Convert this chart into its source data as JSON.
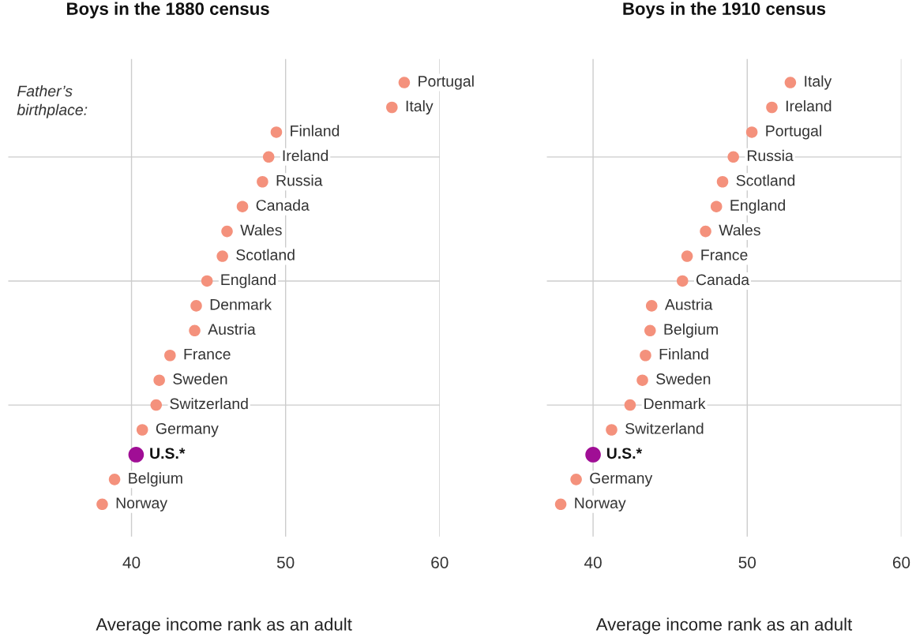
{
  "chart_data": [
    {
      "type": "scatter",
      "orientation": "horizontal",
      "title": "Boys in the 1880 census",
      "xlabel": "Average income rank as an adult",
      "annotations": [
        "Father’s\nbirthplace:"
      ],
      "categories": [
        "Portugal",
        "Italy",
        "Finland",
        "Ireland",
        "Russia",
        "Canada",
        "Wales",
        "Scotland",
        "England",
        "Denmark",
        "Austria",
        "France",
        "Sweden",
        "Switzerland",
        "Germany",
        "U.S.*",
        "Belgium",
        "Norway"
      ],
      "series": [
        {
          "color": "#f4917c",
          "values": [
            57.7,
            56.9,
            49.4,
            48.9,
            48.5,
            47.2,
            46.2,
            45.9,
            44.9,
            44.2,
            44.1,
            42.5,
            41.8,
            41.6,
            40.7,
            null,
            38.9,
            38.1
          ]
        },
        {
          "color": "#a00e95",
          "values": [
            null,
            null,
            null,
            null,
            null,
            null,
            null,
            null,
            null,
            null,
            null,
            null,
            null,
            null,
            null,
            40.3,
            null,
            null
          ]
        }
      ],
      "xlim": [
        32,
        60
      ],
      "xticks": [
        40,
        50,
        60
      ],
      "grid": "x",
      "marker": "circle",
      "tick_labels": "x",
      "ref_lines": [
        {
          "axis": "y",
          "value": "Ireland"
        },
        {
          "axis": "y",
          "value": "England"
        },
        {
          "axis": "y",
          "value": "Switzerland"
        }
      ]
    },
    {
      "type": "scatter",
      "orientation": "horizontal",
      "title": "Boys in the 1910 census",
      "xlabel": "Average income rank as an adult",
      "categories": [
        "Italy",
        "Ireland",
        "Portugal",
        "Russia",
        "Scotland",
        "England",
        "Wales",
        "France",
        "Canada",
        "Austria",
        "Belgium",
        "Finland",
        "Sweden",
        "Denmark",
        "Switzerland",
        "U.S.*",
        "Germany",
        "Norway"
      ],
      "series": [
        {
          "color": "#f4917c",
          "values": [
            52.8,
            51.6,
            50.3,
            49.1,
            48.4,
            48.0,
            47.3,
            46.1,
            45.8,
            43.8,
            43.7,
            43.4,
            43.2,
            42.4,
            41.2,
            null,
            38.9,
            37.9
          ]
        },
        {
          "color": "#a00e95",
          "values": [
            null,
            null,
            null,
            null,
            null,
            null,
            null,
            null,
            null,
            null,
            null,
            null,
            null,
            null,
            null,
            40.0,
            null,
            null
          ]
        }
      ],
      "xlim": [
        37,
        60
      ],
      "xticks": [
        40,
        50,
        60
      ],
      "grid": "x",
      "marker": "circle",
      "tick_labels": "x",
      "ref_lines": [
        {
          "axis": "y",
          "value": "Russia"
        },
        {
          "axis": "y",
          "value": "Canada"
        },
        {
          "axis": "y",
          "value": "Denmark"
        }
      ]
    }
  ]
}
